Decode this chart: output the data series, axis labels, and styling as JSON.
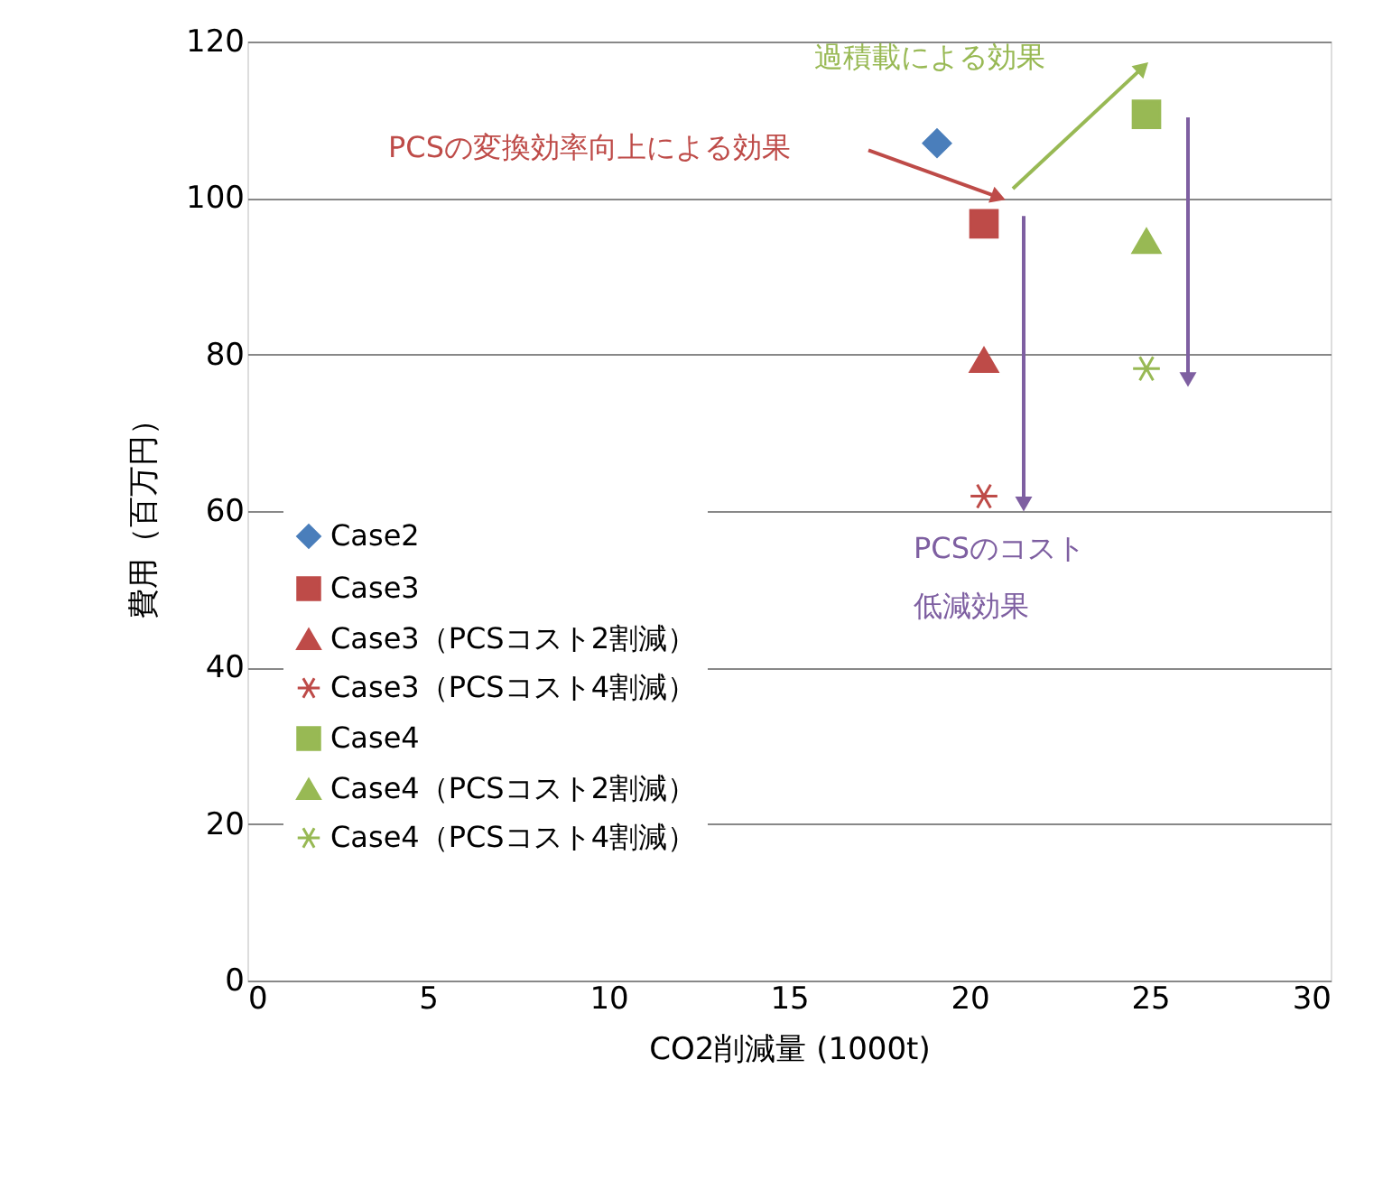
{
  "chart_data": {
    "type": "scatter",
    "xlabel": "CO2削減量 (1000t)",
    "ylabel": "費用（百万円）",
    "xlim": [
      0,
      30
    ],
    "xticks": [
      0,
      5,
      10,
      15,
      20,
      25,
      30
    ],
    "ylim": [
      0,
      120
    ],
    "yticks": [
      0,
      20,
      40,
      60,
      80,
      100,
      120
    ],
    "grid": "y",
    "legend": "bottom left",
    "series": [
      {
        "name": "Case2",
        "color": "#4a7ebb",
        "marker": "diamond",
        "x": [
          19.1
        ],
        "values": [
          107
        ]
      },
      {
        "name": "Case3",
        "color": "#be4b48",
        "marker": "square",
        "x": [
          20.4
        ],
        "values": [
          96.7
        ]
      },
      {
        "name": "Case3（PCSコスト2割減）",
        "color": "#be4b48",
        "marker": "triangle",
        "x": [
          20.4
        ],
        "values": [
          79.3
        ]
      },
      {
        "name": "Case3（PCSコスト4割減）",
        "color": "#be4b48",
        "marker": "cross",
        "x": [
          20.4
        ],
        "values": [
          61.9
        ]
      },
      {
        "name": "Case4",
        "color": "#98b954",
        "marker": "square",
        "x": [
          24.9
        ],
        "values": [
          110.7
        ]
      },
      {
        "name": "Case4（PCSコスト2割減）",
        "color": "#98b954",
        "marker": "triangle",
        "x": [
          24.9
        ],
        "values": [
          94.5
        ]
      },
      {
        "name": "Case4（PCSコスト4割減）",
        "color": "#98b954",
        "marker": "cross",
        "x": [
          24.9
        ],
        "values": [
          78.2
        ]
      }
    ],
    "annotations": [
      "過積載による効果",
      "PCSの変換効率向上による効果",
      "PCSのコスト",
      "低減効果"
    ]
  }
}
